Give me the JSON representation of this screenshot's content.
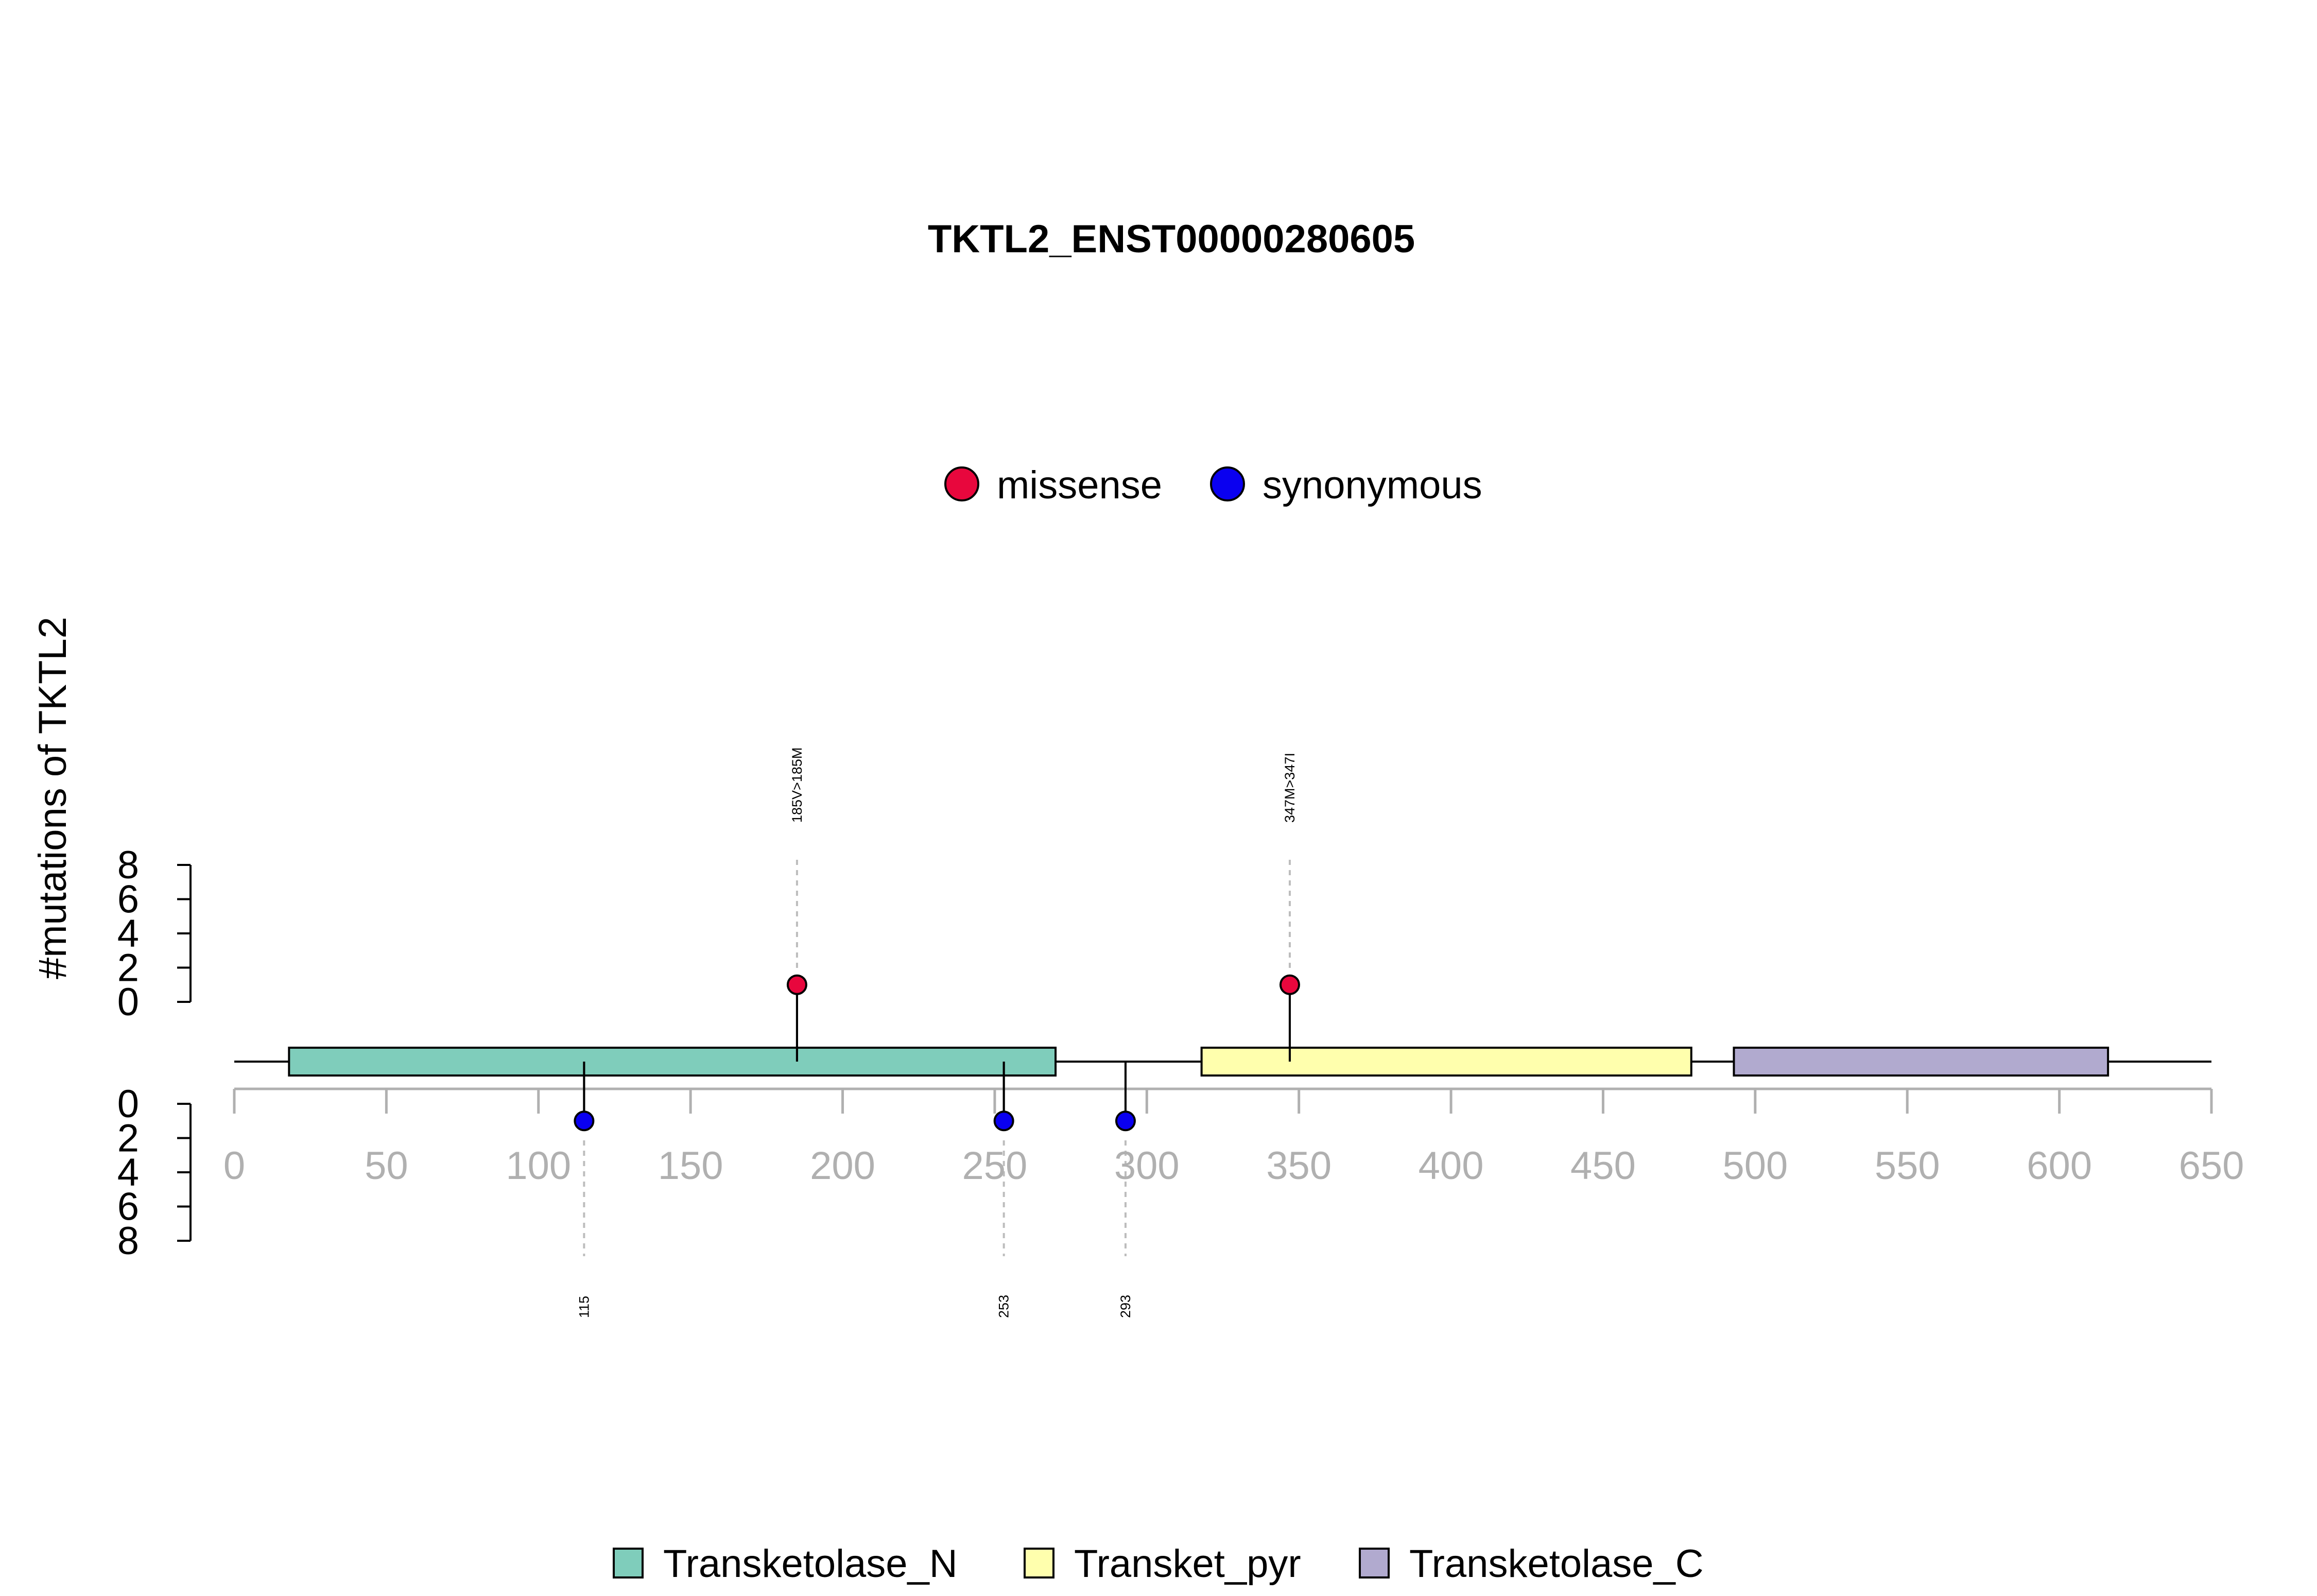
{
  "chart_data": {
    "type": "lollipop",
    "title": "TKTL2_ENST00000280605",
    "ylabel": "#mutations of TKTL2",
    "xlim": [
      0,
      650
    ],
    "x_ticks": [
      0,
      50,
      100,
      150,
      200,
      250,
      300,
      350,
      400,
      450,
      500,
      550,
      600,
      650
    ],
    "y_ticks_top": [
      0,
      2,
      4,
      6,
      8
    ],
    "y_ticks_bottom": [
      0,
      2,
      4,
      6,
      8
    ],
    "protein_length": 650,
    "mutation_legend": [
      {
        "name": "missense",
        "color": "#E8073D"
      },
      {
        "name": "synonymous",
        "color": "#0A00F0"
      }
    ],
    "domains": [
      {
        "name": "Transketolase_N",
        "start": 18,
        "end": 270,
        "color": "#7FCDBB"
      },
      {
        "name": "Transket_pyr",
        "start": 318,
        "end": 479,
        "color": "#FFFFAD"
      },
      {
        "name": "Transketolase_C",
        "start": 493,
        "end": 616,
        "color": "#B1AACF"
      }
    ],
    "mutations_top": [
      {
        "position": 185,
        "count": 1,
        "type": "missense",
        "label": "185V>185M"
      },
      {
        "position": 347,
        "count": 1,
        "type": "missense",
        "label": "347M>347I"
      }
    ],
    "mutations_bottom": [
      {
        "position": 115,
        "count": 1,
        "type": "synonymous",
        "label": "115"
      },
      {
        "position": 253,
        "count": 1,
        "type": "synonymous",
        "label": "253"
      },
      {
        "position": 293,
        "count": 1,
        "type": "synonymous",
        "label": "293"
      }
    ]
  }
}
